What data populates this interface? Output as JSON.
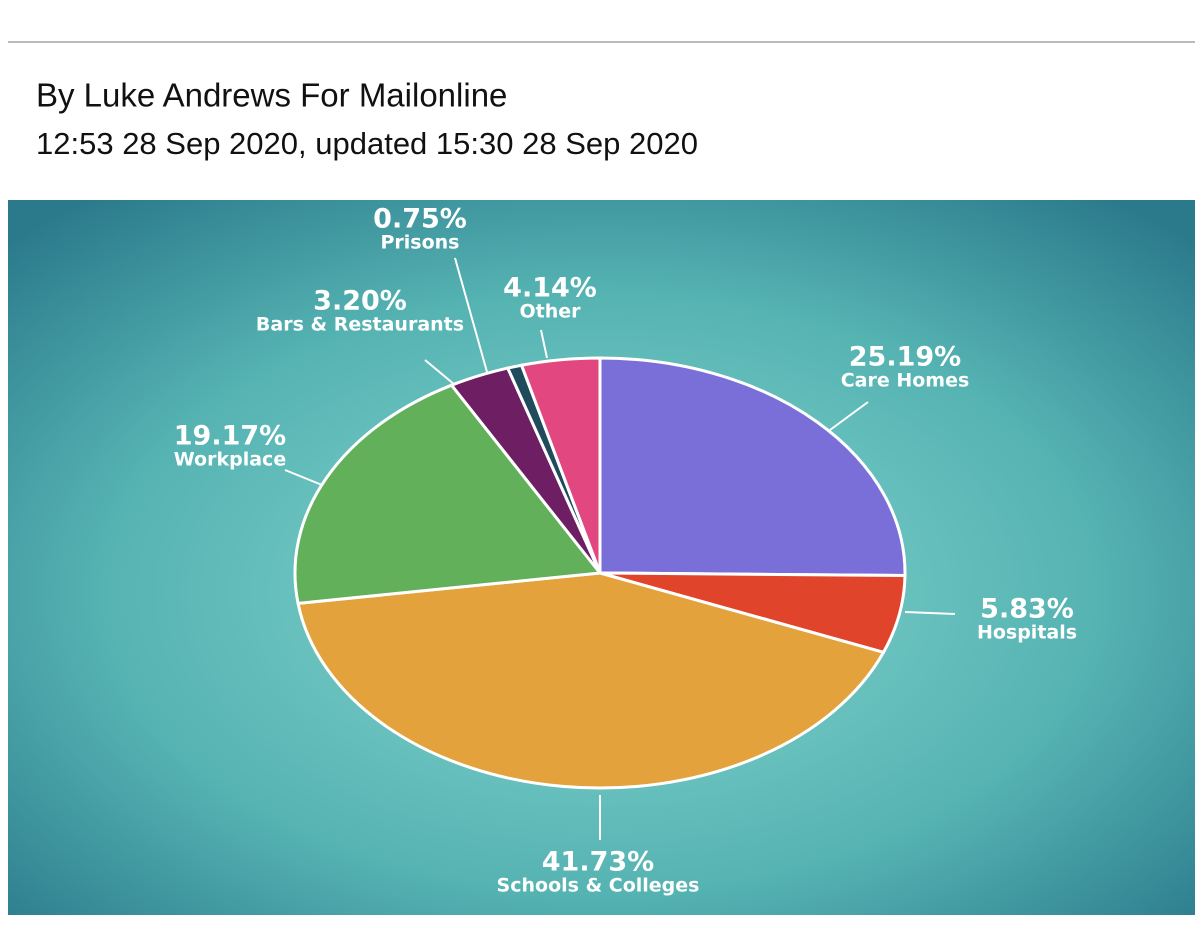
{
  "byline": "By Luke Andrews For Mailonline",
  "timestamp": "12:53 28 Sep 2020, updated 15:30 28 Sep 2020",
  "chart_data": {
    "type": "pie",
    "categories": [
      "Care Homes",
      "Hospitals",
      "Schools & Colleges",
      "Workplace",
      "Bars & Restaurants",
      "Prisons",
      "Other"
    ],
    "values": [
      25.19,
      5.83,
      41.73,
      19.17,
      3.2,
      0.75,
      4.14
    ],
    "value_labels": [
      "25.19%",
      "5.83%",
      "41.73%",
      "19.17%",
      "3.20%",
      "0.75%",
      "4.14%"
    ],
    "colors": [
      "#7a6fd8",
      "#e0452c",
      "#e3a23c",
      "#62b05a",
      "#6e1f63",
      "#1f4b5c",
      "#e2477f"
    ]
  }
}
